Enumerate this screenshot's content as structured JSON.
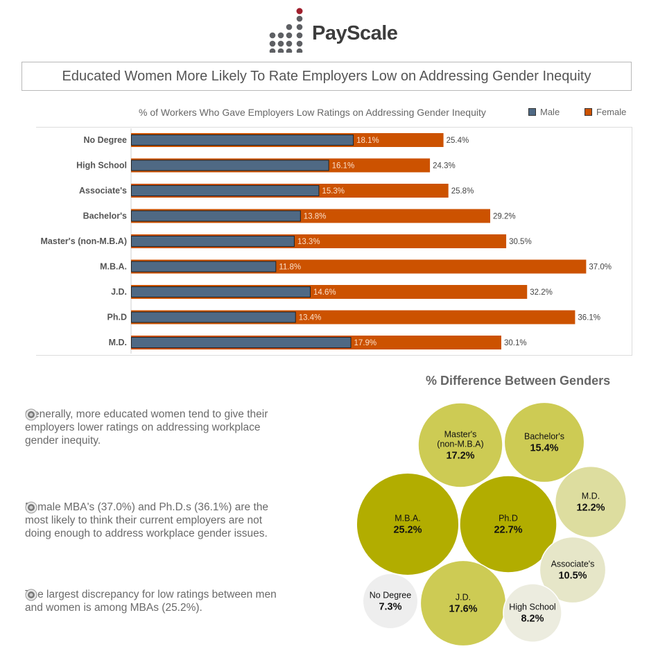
{
  "logo": {
    "text": "PayScale",
    "icon": "payscale-dot-logo",
    "colors": {
      "dots": "#5e6064",
      "accent": "#a01f2d"
    }
  },
  "header": {
    "title": "Educated Women More Likely To Rate Employers Low on Addressing Gender Inequity"
  },
  "colors": {
    "male": "#4f6984",
    "female": "#cc5200"
  },
  "chart_data": [
    {
      "type": "bar",
      "orientation": "horizontal",
      "title": "% of Workers Who Gave Employers Low Ratings on Addressing Gender Inequity",
      "categories": [
        "No Degree",
        "High School",
        "Associate's",
        "Bachelor's",
        "Master's (non-M.B.A)",
        "M.B.A.",
        "J.D.",
        "Ph.D",
        "M.D."
      ],
      "series": [
        {
          "name": "Male",
          "values": [
            18.1,
            16.1,
            15.3,
            13.8,
            13.3,
            11.8,
            14.6,
            13.4,
            17.9
          ],
          "labels": [
            "18.1%",
            "16.1%",
            "15.3%",
            "13.8%",
            "13.3%",
            "11.8%",
            "14.6%",
            "13.4%",
            "17.9%"
          ]
        },
        {
          "name": "Female",
          "values": [
            25.4,
            24.3,
            25.8,
            29.2,
            30.5,
            37.0,
            32.2,
            36.1,
            30.1
          ],
          "labels": [
            "25.4%",
            "24.3%",
            "25.8%",
            "29.2%",
            "30.5%",
            "37.0%",
            "32.2%",
            "36.1%",
            "30.1%"
          ]
        }
      ],
      "legend": "top-right",
      "grid": false
    },
    {
      "type": "bubble",
      "title": "% Difference Between Genders",
      "items": [
        {
          "label": "Master's\n(non-M.B.A)",
          "value": 17.2,
          "text": "17.2%"
        },
        {
          "label": "Bachelor's",
          "value": 15.4,
          "text": "15.4%"
        },
        {
          "label": "M.D.",
          "value": 12.2,
          "text": "12.2%"
        },
        {
          "label": "M.B.A.",
          "value": 25.2,
          "text": "25.2%"
        },
        {
          "label": "Ph.D",
          "value": 22.7,
          "text": "22.7%"
        },
        {
          "label": "Associate's",
          "value": 10.5,
          "text": "10.5%"
        },
        {
          "label": "No Degree",
          "value": 7.3,
          "text": "7.3%"
        },
        {
          "label": "J.D.",
          "value": 17.6,
          "text": "17.6%"
        },
        {
          "label": "High School",
          "value": 8.2,
          "text": "8.2%"
        }
      ]
    }
  ],
  "legend": {
    "male": "Male",
    "female": "Female"
  },
  "bullets": [
    {
      "icon": "target-bullet-icon",
      "text": "Generally, more educated women tend to give their employers lower ratings on addressing workplace gender inequity."
    },
    {
      "icon": "target-bullet-icon",
      "text": "Female MBA's (37.0%) and Ph.D.s (36.1%) are the most likely to think their current employers are not doing enough to address workplace gender issues."
    },
    {
      "icon": "target-bullet-icon",
      "text": "The largest discrepancy for low ratings between men and women is among MBAs (25.2%)."
    }
  ]
}
